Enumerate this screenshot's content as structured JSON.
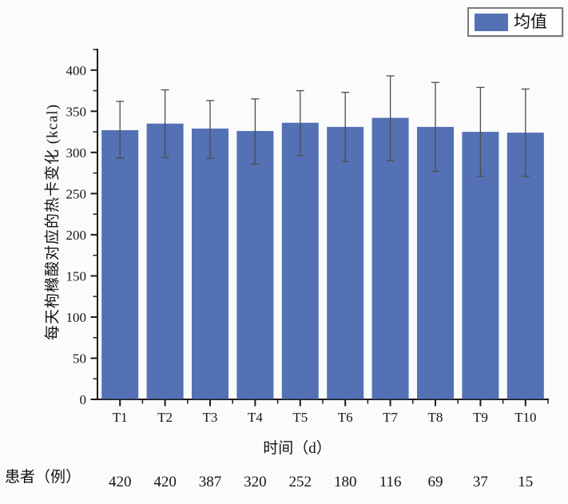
{
  "chart_data": {
    "type": "bar",
    "title": "",
    "categories": [
      "T1",
      "T2",
      "T3",
      "T4",
      "T5",
      "T6",
      "T7",
      "T8",
      "T9",
      "T10"
    ],
    "series": [
      {
        "name": "均值",
        "values": [
          327,
          335,
          329,
          326,
          336,
          331,
          342,
          331,
          325,
          324
        ],
        "error_upper": [
          362,
          376,
          363,
          365,
          375,
          373,
          393,
          385,
          379,
          377
        ],
        "error_lower": [
          293,
          294,
          293,
          286,
          296,
          289,
          290,
          277,
          271,
          271
        ]
      }
    ],
    "xlabel": "时间（d）",
    "ylabel": "每天枸橼酸对应的热卡变化 (kcal)",
    "ylim": [
      0,
      425
    ],
    "y_major_ticks": [
      0,
      50,
      100,
      150,
      200,
      250,
      300,
      350,
      400
    ],
    "y_minor_step": 25,
    "grid": false,
    "legend": {
      "label": "均值",
      "position": "top-right"
    },
    "colors": {
      "bar": "#5471b5",
      "error": "#4d4d4d",
      "axis": "#1a1a1a",
      "text": "#151515",
      "legend_border": "#7c7c7c",
      "background": "#fbfbfb"
    },
    "patients_row": {
      "label": "患者（例）",
      "values": [
        "420",
        "420",
        "387",
        "320",
        "252",
        "180",
        "116",
        "69",
        "37",
        "15"
      ]
    }
  }
}
